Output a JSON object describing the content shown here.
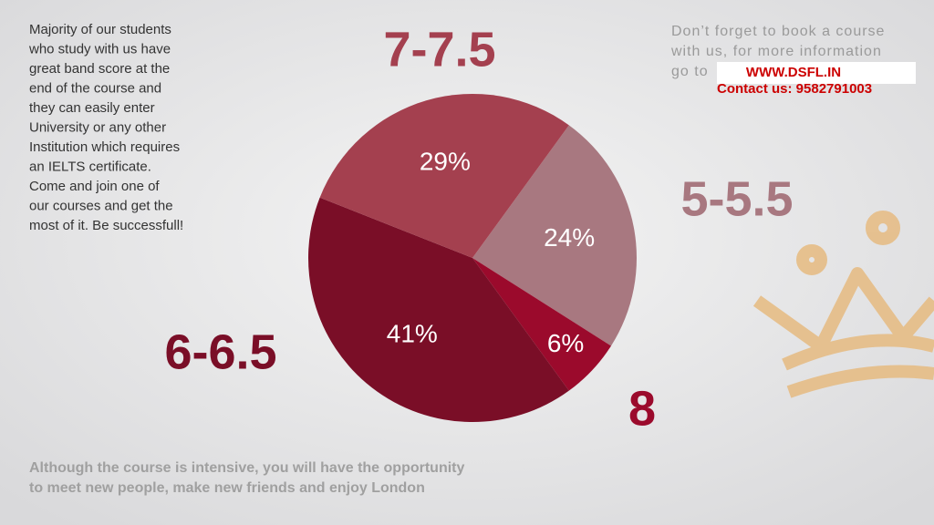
{
  "chart_data": {
    "type": "pie",
    "categories": [
      "5-5.5",
      "8",
      "6-6.5",
      "7-7.5"
    ],
    "values": [
      24,
      6,
      41,
      29
    ],
    "value_labels": [
      "24%",
      "6%",
      "41%",
      "29%"
    ],
    "colors": [
      "#a87880",
      "#9b0a2c",
      "#7a0e27",
      "#a4404f"
    ]
  },
  "intro_lines": [
    "Majority of our students",
    "who study with us have",
    "great band score at the",
    "end of the course and",
    "they can easily enter",
    "University or any other",
    "Institution which requires",
    "an IELTS certificate.",
    "Come and join one of",
    "our courses and get the",
    "most of it. Be successfull!"
  ],
  "reminder_lines": [
    "Don’t forget to book a course",
    "with us, for more information",
    "go to"
  ],
  "website": "WWW.DSFL.IN",
  "contact": "Contact us: 9582791003",
  "footer_lines": [
    "Although the course is intensive, you will have the opportunity",
    "to meet new people, make new friends and enjoy London"
  ]
}
